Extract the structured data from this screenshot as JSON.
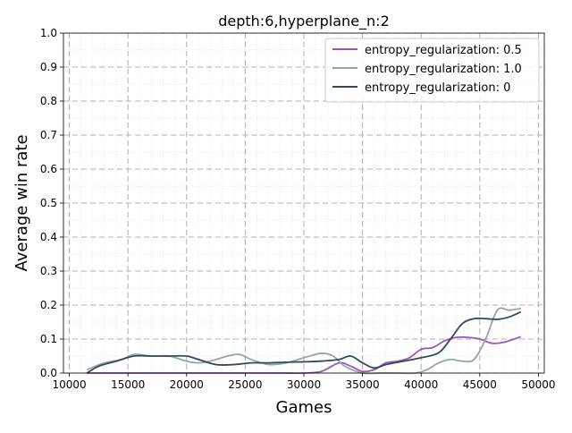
{
  "chart_data": {
    "type": "line",
    "title": "depth:6,hyperplane_n:2",
    "xlabel": "Games",
    "ylabel": "Average win rate",
    "xlim": [
      9500,
      50500
    ],
    "ylim": [
      0,
      1.0
    ],
    "xticks": [
      10000,
      15000,
      20000,
      25000,
      30000,
      35000,
      40000,
      45000,
      50000
    ],
    "xtick_labels": [
      "10000",
      "15000",
      "20000",
      "25000",
      "30000",
      "35000",
      "40000",
      "45000",
      "50000"
    ],
    "yticks": [
      0.0,
      0.1,
      0.2,
      0.3,
      0.4,
      0.5,
      0.6,
      0.7,
      0.8,
      0.9,
      1.0
    ],
    "ytick_labels": [
      "0.0",
      "0.1",
      "0.2",
      "0.3",
      "0.4",
      "0.5",
      "0.6",
      "0.7",
      "0.8",
      "0.9",
      "1.0"
    ],
    "grid": "major dashed, minor dotted",
    "legend_position": "top-right",
    "series": [
      {
        "name": "entropy_regularization: 0.5",
        "color": "#9b59b6",
        "x": [
          11500,
          13000,
          15000,
          17000,
          20000,
          22000,
          25000,
          28000,
          30000,
          31500,
          33000,
          34000,
          35000,
          36000,
          37000,
          38000,
          39000,
          40000,
          41000,
          42000,
          43000,
          44000,
          45000,
          46000,
          47000,
          48500
        ],
        "y": [
          0.0,
          0.0,
          0.0,
          0.0,
          0.0,
          0.0,
          0.0,
          0.0,
          0.0,
          0.005,
          0.03,
          0.02,
          0.005,
          0.01,
          0.03,
          0.035,
          0.045,
          0.07,
          0.075,
          0.095,
          0.105,
          0.105,
          0.1,
          0.088,
          0.09,
          0.107
        ]
      },
      {
        "name": "entropy_regularization: 1.0",
        "color": "#95a5a6",
        "x": [
          11500,
          13000,
          14500,
          15500,
          17000,
          18500,
          20000,
          21000,
          22000,
          23500,
          24500,
          25500,
          27000,
          28500,
          30000,
          31500,
          32500,
          33500,
          35000,
          36500,
          38000,
          39500,
          40500,
          41500,
          42500,
          43500,
          44500,
          45500,
          46500,
          47500,
          48500
        ],
        "y": [
          0.01,
          0.03,
          0.04,
          0.055,
          0.05,
          0.05,
          0.035,
          0.03,
          0.035,
          0.05,
          0.055,
          0.04,
          0.025,
          0.03,
          0.045,
          0.058,
          0.05,
          0.02,
          0.0,
          0.0,
          0.0,
          0.0,
          0.01,
          0.03,
          0.04,
          0.035,
          0.04,
          0.1,
          0.185,
          0.185,
          0.19
        ]
      },
      {
        "name": "entropy_regularization: 0",
        "color": "#34495e",
        "x": [
          11500,
          12500,
          14000,
          15500,
          17000,
          18500,
          20000,
          21000,
          22500,
          24000,
          25500,
          27000,
          28500,
          30000,
          31500,
          33000,
          34000,
          35000,
          36000,
          37000,
          38500,
          40000,
          41500,
          42500,
          43500,
          44500,
          45500,
          46500,
          47500,
          48500
        ],
        "y": [
          0.0,
          0.02,
          0.035,
          0.05,
          0.05,
          0.05,
          0.05,
          0.04,
          0.025,
          0.025,
          0.03,
          0.03,
          0.032,
          0.033,
          0.035,
          0.04,
          0.05,
          0.03,
          0.015,
          0.025,
          0.035,
          0.045,
          0.06,
          0.1,
          0.145,
          0.16,
          0.16,
          0.158,
          0.165,
          0.18
        ]
      }
    ]
  }
}
